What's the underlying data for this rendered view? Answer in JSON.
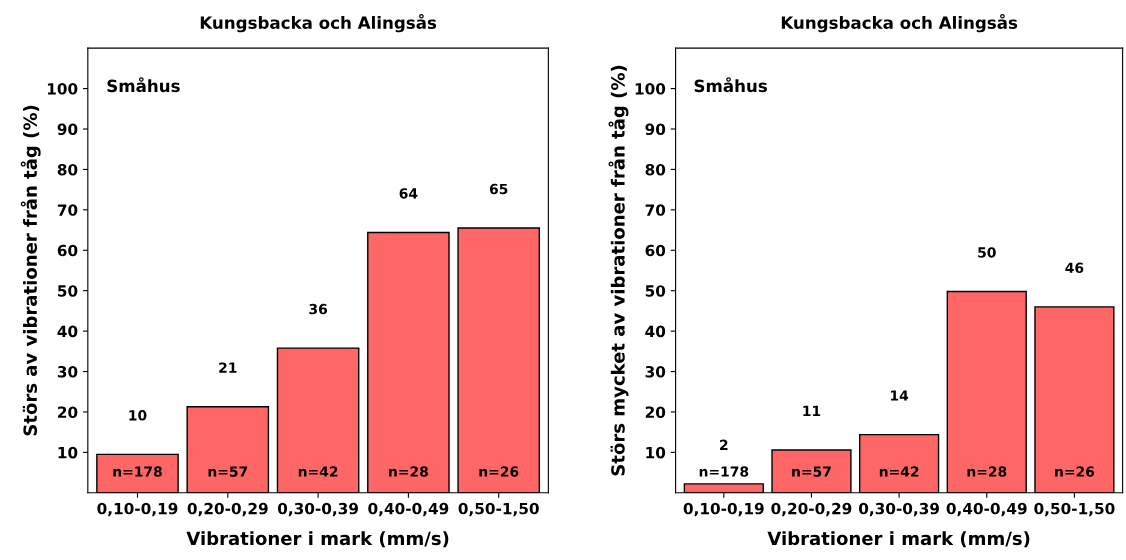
{
  "chart_data": [
    {
      "type": "bar",
      "title": "Kungsbacka och Alingsås",
      "xlabel": "Vibrationer i mark (mm/s)",
      "ylabel": "Störs av vibrationer från tåg (%)",
      "categories": [
        "0,10-0,19",
        "0,20-0,29",
        "0,30-0,39",
        "0,40-0,49",
        "0,50-1,50"
      ],
      "values": [
        9.5,
        21.3,
        35.8,
        64.4,
        65.5
      ],
      "color": "#ff6666",
      "value_labels": [
        "10",
        "21",
        "36",
        "64",
        "65"
      ],
      "ylim": [
        0,
        110
      ],
      "yticks": [
        10,
        20,
        30,
        40,
        50,
        60,
        70,
        80,
        90,
        100
      ],
      "grid": false,
      "annotations": [
        "Småhus",
        "n=178",
        "n=57",
        "n=42",
        "n=28",
        "n=26"
      ]
    },
    {
      "type": "bar",
      "title": "Kungsbacka och Alingsås",
      "xlabel": "Vibrationer i mark (mm/s)",
      "ylabel": "Störs mycket av vibrationer från tåg (%)",
      "categories": [
        "0,10-0,19",
        "0,20-0,29",
        "0,30-0,39",
        "0,40-0,49",
        "0,50-1,50"
      ],
      "values": [
        2.2,
        10.6,
        14.4,
        49.8,
        46.0
      ],
      "color": "#ff6666",
      "value_labels": [
        "2",
        "11",
        "14",
        "50",
        "46"
      ],
      "ylim": [
        0,
        110
      ],
      "yticks": [
        10,
        20,
        30,
        40,
        50,
        60,
        70,
        80,
        90,
        100
      ],
      "grid": false,
      "annotations": [
        "Småhus",
        "n=178",
        "n=57",
        "n=42",
        "n=28",
        "n=26"
      ]
    }
  ]
}
